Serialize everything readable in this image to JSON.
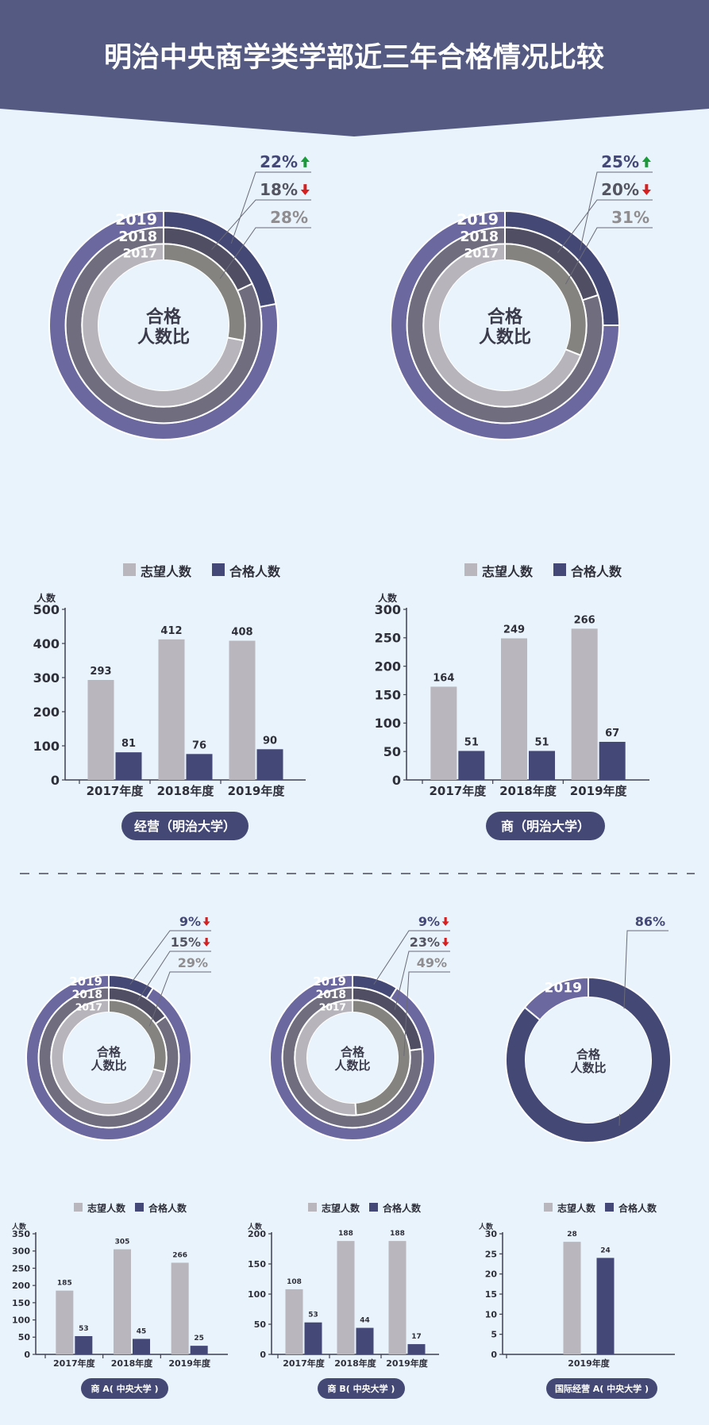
{
  "page": {
    "title": "明治中央商学类学部近三年合格情况比较",
    "center_label_line1": "合格",
    "center_label_line2": "人数比",
    "legend_applicants": "志望人数",
    "legend_passed": "合格人数",
    "y_unit": "人数"
  },
  "colors": {
    "header": "#545a82",
    "applicants": "#b9b6bd",
    "passed": "#434877",
    "ring_2019": "#6a689f",
    "ring_2019_pass": "#444875",
    "ring_2018": "#6f6d7e",
    "ring_2018_pass": "#504e63",
    "ring_2017": "#b7b4bb",
    "ring_2017_pass": "#85837f",
    "up_arrow": "#1a9a3a",
    "down_arrow": "#d42020"
  },
  "chart_data": [
    {
      "type": "pie",
      "subtype": "nested-donut",
      "center_text": [
        "合格",
        "人数比"
      ],
      "rings": [
        {
          "year": "2019",
          "pass_ratio_pct": 22,
          "label": "22%",
          "trend": "up"
        },
        {
          "year": "2018",
          "pass_ratio_pct": 18,
          "label": "18%",
          "trend": "down"
        },
        {
          "year": "2017",
          "pass_ratio_pct": 28,
          "label": "28%",
          "trend": "none"
        }
      ]
    },
    {
      "type": "pie",
      "subtype": "nested-donut",
      "center_text": [
        "合格",
        "人数比"
      ],
      "rings": [
        {
          "year": "2019",
          "pass_ratio_pct": 25,
          "label": "25%",
          "trend": "up"
        },
        {
          "year": "2018",
          "pass_ratio_pct": 20,
          "label": "20%",
          "trend": "down"
        },
        {
          "year": "2017",
          "pass_ratio_pct": 31,
          "label": "31%",
          "trend": "none"
        }
      ]
    },
    {
      "type": "bar",
      "title": "经营（明治大学）",
      "ylabel": "人数",
      "ylim": [
        0,
        500
      ],
      "yticks": [
        "0",
        "100",
        "200",
        "300",
        "400",
        "500"
      ],
      "categories": [
        "2017年度",
        "2018年度",
        "2019年度"
      ],
      "series": [
        {
          "name": "志望人数",
          "values": [
            293,
            412,
            408
          ]
        },
        {
          "name": "合格人数",
          "values": [
            81,
            76,
            90
          ]
        }
      ]
    },
    {
      "type": "bar",
      "title": "商（明治大学）",
      "ylabel": "人数",
      "ylim": [
        0,
        300
      ],
      "yticks": [
        "0",
        "50",
        "100",
        "150",
        "200",
        "250",
        "300"
      ],
      "categories": [
        "2017年度",
        "2018年度",
        "2019年度"
      ],
      "series": [
        {
          "name": "志望人数",
          "values": [
            164,
            249,
            266
          ]
        },
        {
          "name": "合格人数",
          "values": [
            51,
            51,
            67
          ]
        }
      ]
    },
    {
      "type": "pie",
      "subtype": "nested-donut",
      "center_text": [
        "合格",
        "人数比"
      ],
      "rings": [
        {
          "year": "2019",
          "pass_ratio_pct": 9,
          "label": "9%",
          "trend": "down"
        },
        {
          "year": "2018",
          "pass_ratio_pct": 15,
          "label": "15%",
          "trend": "down"
        },
        {
          "year": "2017",
          "pass_ratio_pct": 29,
          "label": "29%",
          "trend": "none"
        }
      ]
    },
    {
      "type": "pie",
      "subtype": "nested-donut",
      "center_text": [
        "合格",
        "人数比"
      ],
      "rings": [
        {
          "year": "2019",
          "pass_ratio_pct": 9,
          "label": "9%",
          "trend": "down"
        },
        {
          "year": "2018",
          "pass_ratio_pct": 23,
          "label": "23%",
          "trend": "down"
        },
        {
          "year": "2017",
          "pass_ratio_pct": 49,
          "label": "49%",
          "trend": "none"
        }
      ]
    },
    {
      "type": "pie",
      "subtype": "nested-donut",
      "center_text": [
        "合格",
        "人数比"
      ],
      "rings": [
        {
          "year": "2019",
          "pass_ratio_pct": 86,
          "label": "86%",
          "trend": "none"
        }
      ]
    },
    {
      "type": "bar",
      "title": "商 A( 中央大学 )",
      "ylabel": "人数",
      "ylim": [
        0,
        350
      ],
      "yticks": [
        "0",
        "50",
        "100",
        "150",
        "200",
        "250",
        "300",
        "350"
      ],
      "categories": [
        "2017年度",
        "2018年度",
        "2019年度"
      ],
      "series": [
        {
          "name": "志望人数",
          "values": [
            185,
            305,
            266
          ]
        },
        {
          "name": "合格人数",
          "values": [
            53,
            45,
            25
          ]
        }
      ]
    },
    {
      "type": "bar",
      "title": "商 B( 中央大学 )",
      "ylabel": "人数",
      "ylim": [
        0,
        200
      ],
      "yticks": [
        "0",
        "50",
        "100",
        "150",
        "200"
      ],
      "categories": [
        "2017年度",
        "2018年度",
        "2019年度"
      ],
      "series": [
        {
          "name": "志望人数",
          "values": [
            108,
            188,
            188
          ]
        },
        {
          "name": "合格人数",
          "values": [
            53,
            44,
            17
          ]
        }
      ]
    },
    {
      "type": "bar",
      "title": "国际经营 A( 中央大学 )",
      "ylabel": "人数",
      "ylim": [
        0,
        30
      ],
      "yticks": [
        "0",
        "5",
        "10",
        "15",
        "20",
        "25",
        "30"
      ],
      "categories": [
        "2019年度"
      ],
      "series": [
        {
          "name": "志望人数",
          "values": [
            28
          ]
        },
        {
          "name": "合格人数",
          "values": [
            24
          ]
        }
      ]
    }
  ]
}
